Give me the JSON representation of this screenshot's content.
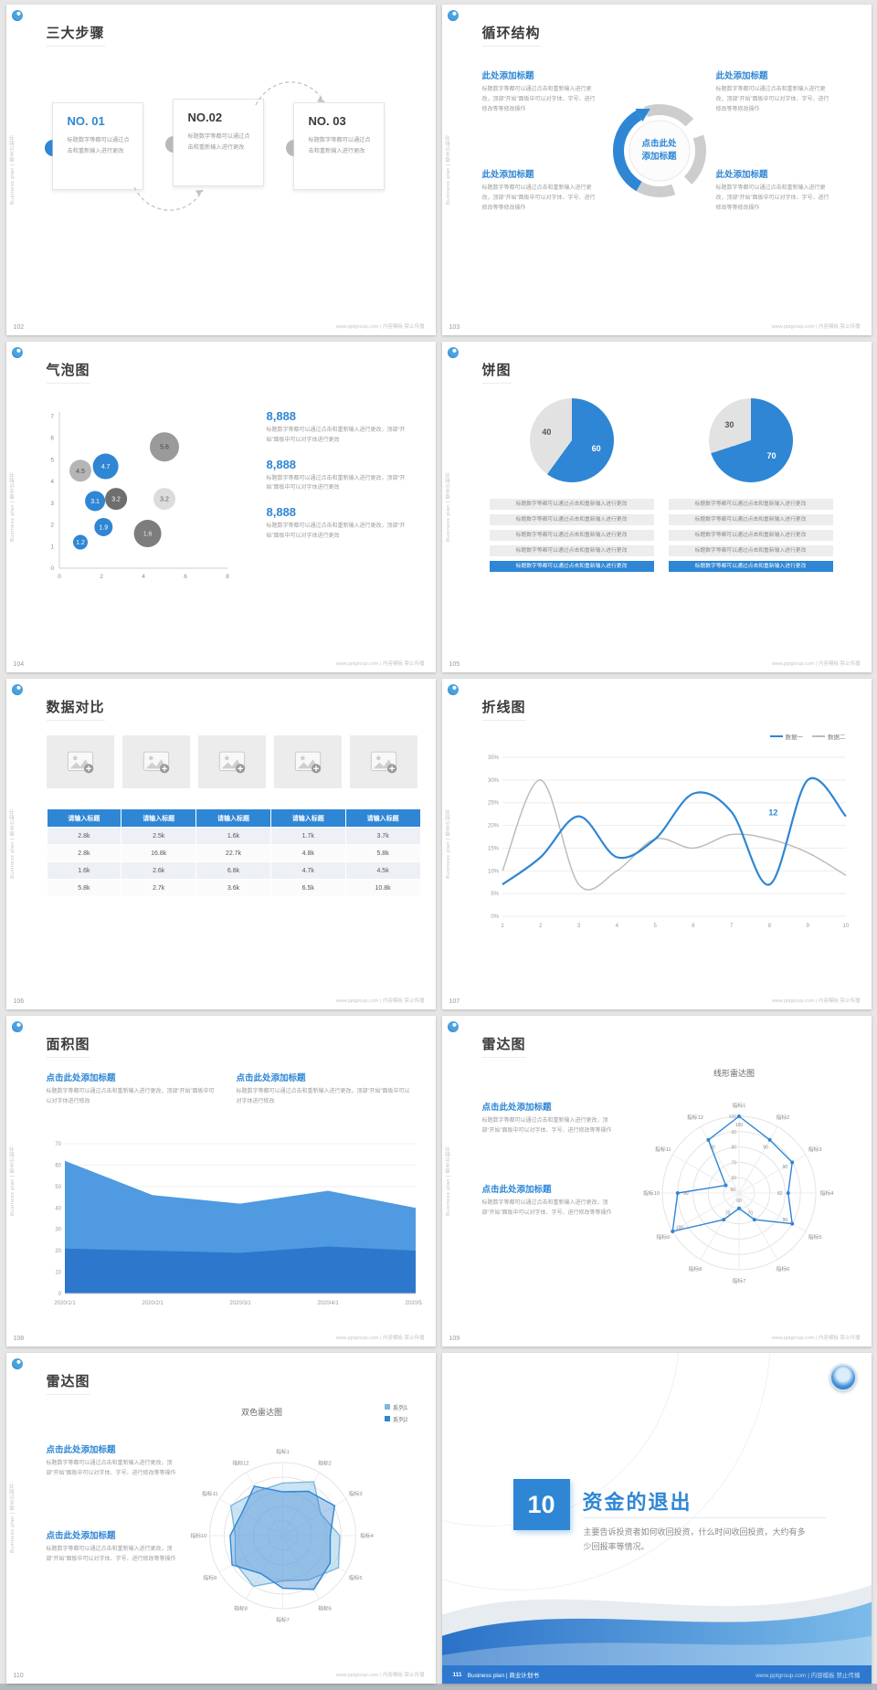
{
  "page": {
    "sidebar_text": "Business plan | 商业计划书",
    "footer_site": "www.pptgroup.com | 内容模板 禁止传播",
    "accent_color": "#2e86d4"
  },
  "slides": {
    "s102": {
      "number": "102",
      "title": "三大步骤",
      "steps": [
        {
          "no": "NO. 01",
          "body": "标题数字等都可以通过点击和重新输入进行更改"
        },
        {
          "no": "NO.02",
          "body": "标题数字等都可以通过点击和重新输入进行更改"
        },
        {
          "no": "NO. 03",
          "body": "标题数字等都可以通过点击和重新输入进行更改"
        }
      ]
    },
    "s103": {
      "number": "103",
      "title": "循环结构",
      "center_label": "点击此处添加标题",
      "blocks": [
        {
          "title": "此处添加标题",
          "body": "标题数字等都可以通过点击和重新输入进行更改，顶部“开始”面板中可以对字体、字号、进行修改等等修改操作"
        },
        {
          "title": "此处添加标题",
          "body": "标题数字等都可以通过点击和重新输入进行更改，顶部“开始”面板中可以对字体、字号、进行修改等等修改操作"
        },
        {
          "title": "此处添加标题",
          "body": "标题数字等都可以通过点击和重新输入进行更改，顶部“开始”面板中可以对字体、字号、进行修改等等修改操作"
        },
        {
          "title": "此处添加标题",
          "body": "标题数字等都可以通过点击和重新输入进行更改，顶部“开始”面板中可以对字体、字号、进行修改等等修改操作"
        }
      ]
    },
    "s104": {
      "number": "104",
      "title": "气泡图",
      "items": [
        {
          "value": "8,888",
          "body": "标题数字等都可以通过点击和重新输入进行更改，顶部“开始”面板中可以对字体进行更改"
        },
        {
          "value": "8,888",
          "body": "标题数字等都可以通过点击和重新输入进行更改，顶部“开始”面板中可以对字体进行更改"
        },
        {
          "value": "8,888",
          "body": "标题数字等都可以通过点击和重新输入进行更改，顶部“开始”面板中可以对字体进行更改"
        }
      ]
    },
    "s105": {
      "number": "105",
      "title": "饼图",
      "row_text": "标题数字等都可以通过点击和重新输入进行更改"
    },
    "s106": {
      "number": "106",
      "title": "数据对比"
    },
    "s107": {
      "number": "107",
      "title": "折线图"
    },
    "s108": {
      "number": "108",
      "title": "面积图",
      "blocks": [
        {
          "title": "点击此处添加标题",
          "body": "标题数字等都可以通过点击和重新输入进行更改，顶部“开始”面板中可以对字体进行修改"
        },
        {
          "title": "点击此处添加标题",
          "body": "标题数字等都可以通过点击和重新输入进行更改，顶部“开始”面板中可以对字体进行修改"
        }
      ]
    },
    "s109": {
      "number": "109",
      "title": "雷达图",
      "subtitle": "线形雷达图",
      "blocks": [
        {
          "title": "点击此处添加标题",
          "body": "标题数字等都可以通过点击和重新输入进行更改，顶部“开始”面板中可以对字体、字号、进行修改等等操作"
        },
        {
          "title": "点击此处添加标题",
          "body": "标题数字等都可以通过点击和重新输入进行更改，顶部“开始”面板中可以对字体、字号、进行修改等等操作"
        }
      ]
    },
    "s110": {
      "number": "110",
      "title": "雷达图",
      "subtitle": "双色雷达图",
      "blocks": [
        {
          "title": "点击此处添加标题",
          "body": "标题数字等都可以通过点击和重新输入进行更改，顶部“开始”面板中可以对字体、字号、进行修改等等操作"
        },
        {
          "title": "点击此处添加标题",
          "body": "标题数字等都可以通过点击和重新输入进行更改，顶部“开始”面板中可以对字体、字号、进行修改等等操作"
        }
      ]
    },
    "s111": {
      "number": "111",
      "big_number": "10",
      "title": "资金的退出",
      "body": "主要告诉投资者如何收回投资，什么时间收回投资，大约有多少回报率等情况。",
      "brand": "Business plan | 商业计划书"
    }
  },
  "chart_data": [
    {
      "id": "bubble-chart",
      "type": "scatter",
      "title": "气泡图",
      "x_max": 8,
      "y_max": 7,
      "x_ticks": [
        0,
        2,
        4,
        6,
        8
      ],
      "y_ticks": [
        0,
        1,
        2,
        3,
        4,
        5,
        6,
        7
      ],
      "bubbles": [
        {
          "x": 1.0,
          "y": 4.5,
          "r": 12,
          "label": "4.5",
          "color": "#b5b5b5",
          "label_color": "#4a4a4a"
        },
        {
          "x": 2.2,
          "y": 4.7,
          "r": 14,
          "label": "4.7",
          "color": "#2e86d4",
          "label_color": "#ffffff"
        },
        {
          "x": 5.0,
          "y": 5.6,
          "r": 16,
          "label": "5.6",
          "color": "#9a9a9a",
          "label_color": "#3f3f3f"
        },
        {
          "x": 1.7,
          "y": 3.1,
          "r": 11,
          "label": "3.1",
          "color": "#2e86d4",
          "label_color": "#ffffff"
        },
        {
          "x": 2.7,
          "y": 3.2,
          "r": 12,
          "label": "3.2",
          "color": "#6e6e6e",
          "label_color": "#ffffff"
        },
        {
          "x": 5.0,
          "y": 3.2,
          "r": 12,
          "label": "3.2",
          "color": "#dcdcdc",
          "label_color": "#5a5a5a"
        },
        {
          "x": 2.1,
          "y": 1.9,
          "r": 10,
          "label": "1.9",
          "color": "#2e86d4",
          "label_color": "#ffffff"
        },
        {
          "x": 1.0,
          "y": 1.2,
          "r": 8,
          "label": "1.2",
          "color": "#2e86d4",
          "label_color": "#ffffff"
        },
        {
          "x": 4.2,
          "y": 1.6,
          "r": 15,
          "label": "1.6",
          "color": "#7d7d7d",
          "label_color": "#e8e8e8"
        }
      ]
    },
    {
      "id": "pie-left",
      "type": "pie",
      "values": [
        60,
        40
      ],
      "labels": [
        "60",
        "40"
      ],
      "colors": [
        "#2e86d4",
        "#e2e2e2"
      ],
      "label_colors": [
        "#ffffff",
        "#555555"
      ]
    },
    {
      "id": "pie-right",
      "type": "pie",
      "values": [
        70,
        30
      ],
      "labels": [
        "70",
        "30"
      ],
      "colors": [
        "#2e86d4",
        "#e2e2e2"
      ],
      "label_colors": [
        "#ffffff",
        "#555555"
      ]
    },
    {
      "id": "compare-table",
      "type": "table",
      "headers": [
        "请输入标题",
        "请输入标题",
        "请输入标题",
        "请输入标题",
        "请输入标题"
      ],
      "rows": [
        [
          "2.8k",
          "2.5k",
          "1.6k",
          "1.7k",
          "3.7k"
        ],
        [
          "2.8k",
          "16.8k",
          "22.7k",
          "4.8k",
          "5.8k"
        ],
        [
          "1.6k",
          "2.6k",
          "6.8k",
          "4.7k",
          "4.5k"
        ],
        [
          "5.8k",
          "2.7k",
          "3.6k",
          "6.5k",
          "10.8k"
        ]
      ]
    },
    {
      "id": "line-chart",
      "type": "line",
      "x": [
        "1",
        "2",
        "3",
        "4",
        "5",
        "6",
        "7",
        "8",
        "9",
        "10"
      ],
      "y_ticks": [
        "0%",
        "5%",
        "10%",
        "15%",
        "20%",
        "25%",
        "30%",
        "35%"
      ],
      "ylim": [
        0,
        35
      ],
      "series": [
        {
          "name": "数据一",
          "color": "#2e86d4",
          "values": [
            7,
            13,
            22,
            13,
            17,
            27,
            23,
            7,
            30,
            22
          ]
        },
        {
          "name": "数据二",
          "color": "#bcbcbc",
          "values": [
            10,
            30,
            7,
            10,
            17,
            15,
            18,
            17,
            14,
            9
          ]
        }
      ],
      "point_label": {
        "text": "12",
        "x_index": 7,
        "y": 21
      }
    },
    {
      "id": "area-chart",
      "type": "area",
      "x": [
        "2020/1/1",
        "2020/2/1",
        "2020/3/1",
        "2020/4/1",
        "2020/5/1"
      ],
      "ylim": [
        0,
        70
      ],
      "y_ticks": [
        0,
        10,
        20,
        30,
        40,
        50,
        60,
        70
      ],
      "series": [
        {
          "color": "#4f9ae0",
          "values": [
            62,
            46,
            42,
            48,
            40
          ]
        },
        {
          "color": "#2d77cc",
          "values": [
            21,
            20,
            19,
            22,
            20
          ]
        }
      ]
    },
    {
      "id": "radar-line",
      "type": "radar",
      "title": "线形雷达图",
      "labels": [
        "指标1",
        "指标2",
        "指标3",
        "指标4",
        "指标5",
        "指标6",
        "指标7",
        "指标8",
        "指标9",
        "指标10",
        "指标11",
        "指标12"
      ],
      "min": 50,
      "max": 100,
      "rings": [
        60,
        70,
        80,
        90,
        100
      ],
      "series": [
        {
          "color": "#2e86d4",
          "markers": true,
          "show_values": true,
          "values": [
            100,
            90,
            90,
            82,
            90,
            70,
            60,
            70,
            100,
            90,
            60,
            90
          ]
        }
      ]
    },
    {
      "id": "radar-dual",
      "type": "radar",
      "title": "双色雷达图",
      "labels": [
        "指标1",
        "指标2",
        "指标3",
        "指标4",
        "指标5",
        "指标6",
        "指标7",
        "指标8",
        "指标9",
        "指标10",
        "指标11",
        "指标12"
      ],
      "min": 0,
      "max": 100,
      "series": [
        {
          "name": "系列1",
          "color": "#7db8dd",
          "fill": "rgba(160,205,233,0.55)",
          "values": [
            72,
            85,
            60,
            78,
            88,
            70,
            62,
            80,
            75,
            65,
            82,
            70
          ]
        },
        {
          "name": "系列2",
          "color": "#2e86d4",
          "fill": "rgba(62,134,212,0.40)",
          "values": [
            60,
            70,
            82,
            65,
            75,
            85,
            72,
            60,
            80,
            72,
            64,
            78
          ]
        }
      ]
    }
  ]
}
